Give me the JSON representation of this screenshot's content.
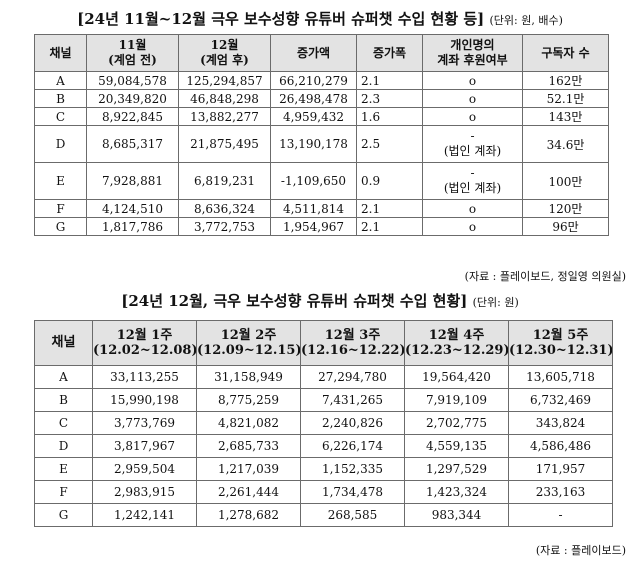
{
  "table1": {
    "title": "[24년 11월~12월 극우 보수성향 유튜버 슈퍼챗 수입 현황 등]",
    "unit": "(단위: 원, 배수)",
    "headers": {
      "channel": "채널",
      "nov_1": "11월",
      "nov_2": "(계엄 전)",
      "dec_1": "12월",
      "dec_2": "(계엄 후)",
      "increase": "증가액",
      "ratio": "증가폭",
      "personal_1": "개인명의",
      "personal_2": "계좌 후원여부",
      "subscribers": "구독자 수"
    },
    "rows": [
      {
        "channel": "A",
        "nov": "59,084,578",
        "dec": "125,294,857",
        "increase": "66,210,279",
        "ratio": "2.1",
        "personal": "o",
        "subscribers": "162만"
      },
      {
        "channel": "B",
        "nov": "20,349,820",
        "dec": "46,848,298",
        "increase": "26,498,478",
        "ratio": "2.3",
        "personal": "o",
        "subscribers": "52.1만"
      },
      {
        "channel": "C",
        "nov": "8,922,845",
        "dec": "13,882,277",
        "increase": "4,959,432",
        "ratio": "1.6",
        "personal": "o",
        "subscribers": "143만"
      },
      {
        "channel": "D",
        "nov": "8,685,317",
        "dec": "21,875,495",
        "increase": "13,190,178",
        "ratio": "2.5",
        "personal": "-",
        "personal_note": "(법인 계좌)",
        "subscribers": "34.6만"
      },
      {
        "channel": "E",
        "nov": "7,928,881",
        "dec": "6,819,231",
        "increase": "-1,109,650",
        "ratio": "0.9",
        "personal": "-",
        "personal_note": "(법인 계좌)",
        "subscribers": "100만"
      },
      {
        "channel": "F",
        "nov": "4,124,510",
        "dec": "8,636,324",
        "increase": "4,511,814",
        "ratio": "2.1",
        "personal": "o",
        "subscribers": "120만"
      },
      {
        "channel": "G",
        "nov": "1,817,786",
        "dec": "3,772,753",
        "increase": "1,954,967",
        "ratio": "2.1",
        "personal": "o",
        "subscribers": "96만"
      }
    ],
    "source": "(자료 : 플레이보드, 정일영 의원실)"
  },
  "table2": {
    "title": "[24년 12월, 극우 보수성향 유튜버 슈퍼챗 수입 현황]",
    "unit": "(단위: 원)",
    "headers": {
      "channel": "채널",
      "weeks": [
        {
          "name": "12월 1주",
          "range": "(12.02~12.08)"
        },
        {
          "name": "12월 2주",
          "range": "(12.09~12.15)"
        },
        {
          "name": "12월 3주",
          "range": "(12.16~12.22)"
        },
        {
          "name": "12월 4주",
          "range": "(12.23~12.29)"
        },
        {
          "name": "12월 5주",
          "range": "(12.30~12.31)"
        }
      ]
    },
    "rows": [
      {
        "channel": "A",
        "w": [
          "33,113,255",
          "31,158,949",
          "27,294,780",
          "19,564,420",
          "13,605,718"
        ]
      },
      {
        "channel": "B",
        "w": [
          "15,990,198",
          "8,775,259",
          "7,431,265",
          "7,919,109",
          "6,732,469"
        ]
      },
      {
        "channel": "C",
        "w": [
          "3,773,769",
          "4,821,082",
          "2,240,826",
          "2,702,775",
          "343,824"
        ]
      },
      {
        "channel": "D",
        "w": [
          "3,817,967",
          "2,685,733",
          "6,226,174",
          "4,559,135",
          "4,586,486"
        ]
      },
      {
        "channel": "E",
        "w": [
          "2,959,504",
          "1,217,039",
          "1,152,335",
          "1,297,529",
          "171,957"
        ]
      },
      {
        "channel": "F",
        "w": [
          "2,983,915",
          "2,261,444",
          "1,734,478",
          "1,423,324",
          "233,163"
        ]
      },
      {
        "channel": "G",
        "w": [
          "1,242,141",
          "1,278,682",
          "268,585",
          "983,344",
          "-"
        ]
      }
    ],
    "source": "(자료 : 플레이보드)"
  }
}
